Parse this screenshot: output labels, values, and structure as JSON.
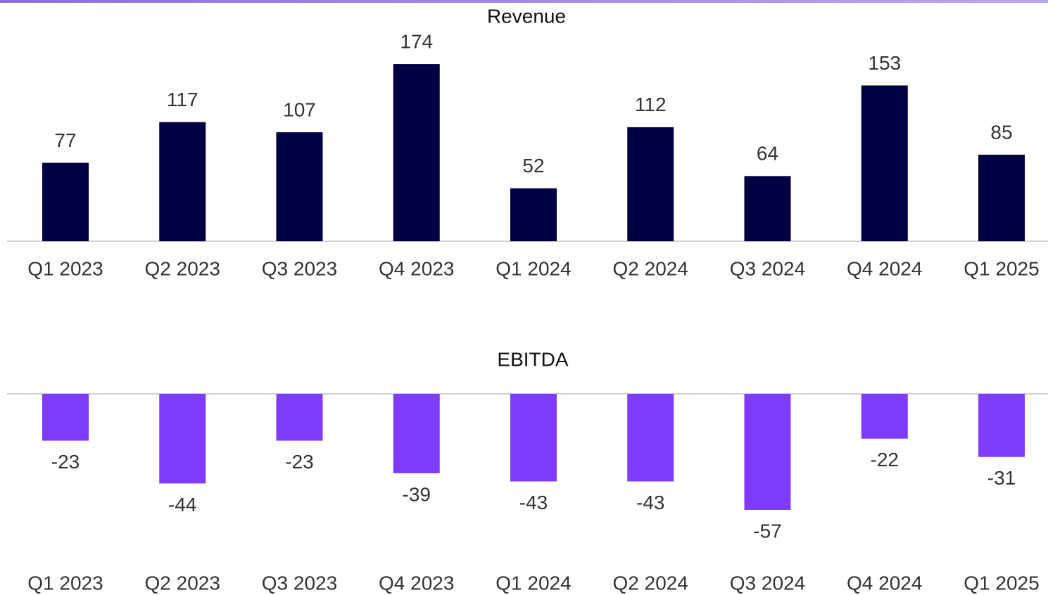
{
  "chart_data": [
    {
      "type": "bar",
      "title": "Revenue",
      "categories": [
        "Q1 2023",
        "Q2 2023",
        "Q3 2023",
        "Q4 2023",
        "Q1 2024",
        "Q2 2024",
        "Q3 2024",
        "Q4 2024",
        "Q1 2025"
      ],
      "values": [
        77,
        117,
        107,
        174,
        52,
        112,
        64,
        153,
        85
      ],
      "color": "#000044",
      "ylim": [
        0,
        180
      ]
    },
    {
      "type": "bar",
      "title": "EBITDA",
      "categories": [
        "Q1 2023",
        "Q2 2023",
        "Q3 2023",
        "Q4 2023",
        "Q1 2024",
        "Q2 2024",
        "Q3 2024",
        "Q4 2024",
        "Q1 2025"
      ],
      "values": [
        -23,
        -44,
        -23,
        -39,
        -43,
        -43,
        -57,
        -22,
        -31
      ],
      "color": "#7f3cff",
      "ylim": [
        -60,
        0
      ]
    }
  ]
}
